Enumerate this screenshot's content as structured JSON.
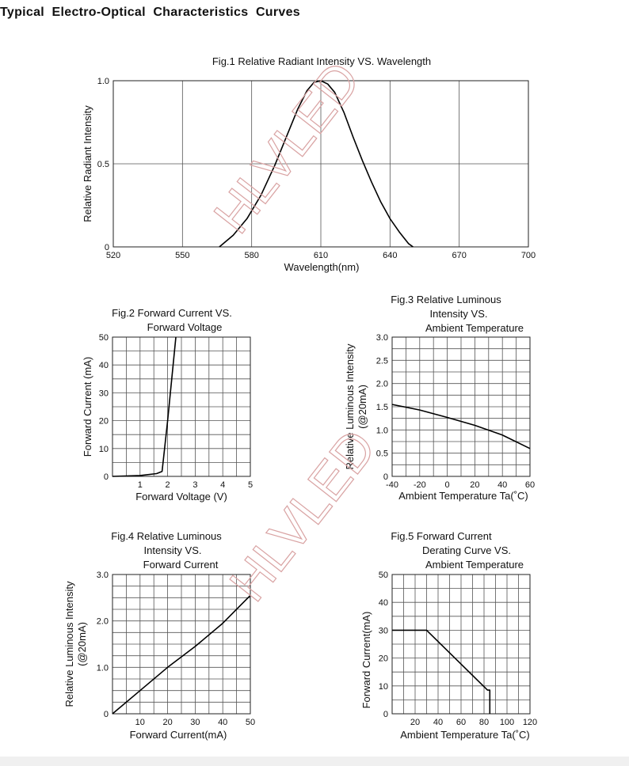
{
  "page": {
    "heading": "Typical  Electro-Optical  Characteristics  Curves",
    "watermark": "HLVLED",
    "watermark_color": "#d9a3a3"
  },
  "chart_data": [
    {
      "id": "fig1",
      "type": "line",
      "title_lines": [
        "Fig.1 Relative Radiant Intensity VS. Wavelength"
      ],
      "xlabel": "Wavelength(nm)",
      "ylabel_lines": [
        "Relative Radiant Intensity"
      ],
      "xlim": [
        520,
        700
      ],
      "ylim": [
        0,
        1.0
      ],
      "xticks": [
        520,
        550,
        580,
        610,
        640,
        670,
        700
      ],
      "xtick_labels": [
        "520",
        "550",
        "580",
        "610",
        "640",
        "670",
        "700"
      ],
      "yticks": [
        0,
        0.5,
        1.0
      ],
      "ytick_labels": [
        "0",
        "0.5",
        "1.0"
      ],
      "grid": true,
      "series": [
        {
          "x": [
            566,
            572,
            578,
            584,
            590,
            595,
            600,
            604,
            607,
            610,
            613,
            616,
            620,
            624,
            628,
            632,
            636,
            640,
            644,
            648,
            650
          ],
          "y": [
            0.0,
            0.07,
            0.17,
            0.31,
            0.49,
            0.66,
            0.83,
            0.94,
            0.99,
            1.0,
            0.98,
            0.93,
            0.81,
            0.66,
            0.52,
            0.39,
            0.27,
            0.17,
            0.09,
            0.02,
            0.0
          ]
        }
      ]
    },
    {
      "id": "fig2",
      "type": "line",
      "title_lines": [
        "Fig.2 Forward Current VS.",
        "Forward Voltage"
      ],
      "xlabel": "Forward Voltage (V)",
      "ylabel_lines": [
        "Forward Current (mA)"
      ],
      "xlim": [
        0,
        5
      ],
      "ylim": [
        0,
        50
      ],
      "xticks": [
        1,
        2,
        3,
        4,
        5
      ],
      "xtick_labels": [
        "1",
        "2",
        "3",
        "4",
        "5"
      ],
      "yticks": [
        0,
        10,
        20,
        30,
        40,
        50
      ],
      "ytick_labels": [
        "0",
        "10",
        "20",
        "30",
        "40",
        "50"
      ],
      "grid_x": [
        0,
        0.5,
        1,
        1.5,
        2,
        2.5,
        3,
        3.5,
        4,
        4.5,
        5
      ],
      "grid_y": [
        0,
        5,
        10,
        15,
        20,
        25,
        30,
        35,
        40,
        45,
        50
      ],
      "series": [
        {
          "x": [
            0,
            1.0,
            1.6,
            1.8,
            2.0,
            2.3
          ],
          "y": [
            0,
            0.3,
            1.0,
            1.8,
            20,
            50
          ]
        }
      ]
    },
    {
      "id": "fig3",
      "type": "line",
      "title_lines": [
        "Fig.3 Relative Luminous",
        "Intensity VS.",
        "Ambient Temperature"
      ],
      "xlabel": "Ambient Temperature Ta(˚C)",
      "ylabel_lines": [
        "Relative Luminous Intensity",
        "(@20mA)"
      ],
      "xlim": [
        -40,
        60
      ],
      "ylim": [
        0,
        3.0
      ],
      "xticks": [
        -40,
        -20,
        0,
        20,
        40,
        60
      ],
      "xtick_labels": [
        "-40",
        "-20",
        "0",
        "20",
        "40",
        "60"
      ],
      "yticks": [
        0,
        0.5,
        1.0,
        1.5,
        2.0,
        2.5,
        3.0
      ],
      "ytick_labels": [
        "0",
        "0.5",
        "1.0",
        "1.5",
        "2.0",
        "2.5",
        "3.0"
      ],
      "grid_x": [
        -40,
        -30,
        -20,
        -10,
        0,
        10,
        20,
        30,
        40,
        50,
        60
      ],
      "grid_y": [
        0,
        0.25,
        0.5,
        0.75,
        1.0,
        1.25,
        1.5,
        1.75,
        2.0,
        2.25,
        2.5,
        2.75,
        3.0
      ],
      "series": [
        {
          "x": [
            -40,
            -20,
            0,
            20,
            40,
            60
          ],
          "y": [
            1.55,
            1.43,
            1.27,
            1.1,
            0.89,
            0.6
          ]
        }
      ]
    },
    {
      "id": "fig4",
      "type": "line",
      "title_lines": [
        "Fig.4 Relative Luminous",
        "Intensity VS.",
        "Forward Current"
      ],
      "xlabel": "Forward Current(mA)",
      "ylabel_lines": [
        "Relative Luminous Intensity",
        "(@20mA)"
      ],
      "xlim": [
        0,
        50
      ],
      "ylim": [
        0,
        3.0
      ],
      "xticks": [
        10,
        20,
        30,
        40,
        50
      ],
      "xtick_labels": [
        "10",
        "20",
        "30",
        "40",
        "50"
      ],
      "yticks": [
        0,
        1.0,
        2.0,
        3.0
      ],
      "ytick_labels": [
        "0",
        "1.0",
        "2.0",
        "3.0"
      ],
      "grid_x": [
        0,
        5,
        10,
        15,
        20,
        25,
        30,
        35,
        40,
        45,
        50
      ],
      "grid_y": [
        0,
        0.25,
        0.5,
        0.75,
        1.0,
        1.25,
        1.5,
        1.75,
        2.0,
        2.25,
        2.5,
        2.75,
        3.0
      ],
      "series": [
        {
          "x": [
            0,
            10,
            20,
            30,
            40,
            50
          ],
          "y": [
            0,
            0.5,
            1.0,
            1.45,
            1.95,
            2.55
          ]
        }
      ]
    },
    {
      "id": "fig5",
      "type": "line",
      "title_lines": [
        "Fig.5 Forward Current",
        "Derating Curve VS.",
        "Ambient Temperature"
      ],
      "xlabel": "Ambient Temperature Ta(˚C)",
      "ylabel_lines": [
        "Forward Current(mA)"
      ],
      "xlim": [
        0,
        120
      ],
      "ylim": [
        0,
        50
      ],
      "xticks": [
        20,
        40,
        60,
        80,
        100,
        120
      ],
      "xtick_labels": [
        "20",
        "40",
        "60",
        "80",
        "100",
        "120"
      ],
      "yticks": [
        0,
        10,
        20,
        30,
        40,
        50
      ],
      "ytick_labels": [
        "0",
        "10",
        "20",
        "30",
        "40",
        "50"
      ],
      "grid_x": [
        0,
        10,
        20,
        30,
        40,
        50,
        60,
        70,
        80,
        90,
        100,
        110,
        120
      ],
      "grid_y": [
        0,
        5,
        10,
        15,
        20,
        25,
        30,
        35,
        40,
        45,
        50
      ],
      "series": [
        {
          "x": [
            0,
            30,
            83,
            85,
            85
          ],
          "y": [
            30,
            30,
            8.5,
            8.5,
            0
          ]
        }
      ]
    }
  ]
}
